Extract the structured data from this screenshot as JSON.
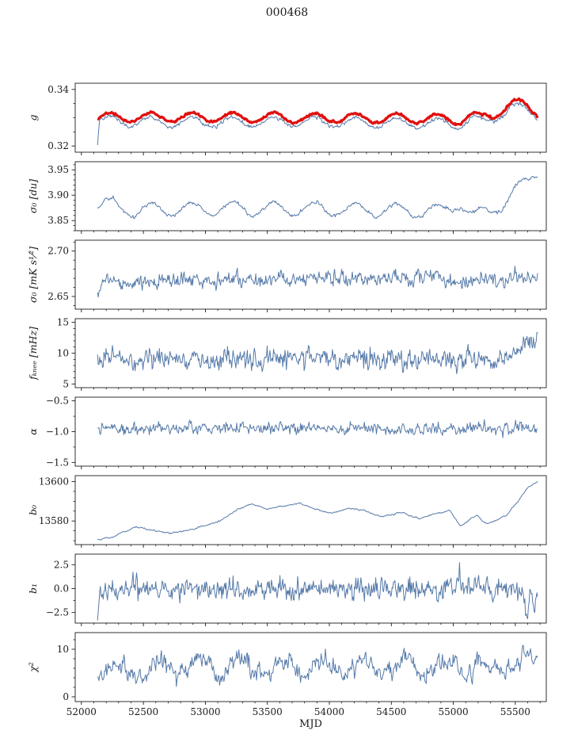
{
  "chart_data": {
    "type": "line",
    "title": "000468",
    "xlabel": "MJD",
    "x_domain": [
      51950,
      55750
    ],
    "x_ticks": [
      52000,
      52500,
      53000,
      53500,
      54000,
      54500,
      55000,
      55500
    ],
    "x_minor_step": 100,
    "x_data_range": [
      52130,
      55680
    ],
    "colors": {
      "line": "#567aa9",
      "highlight": "#e01010",
      "axis": "#000000"
    },
    "panels": [
      {
        "id": "g",
        "ylabel": "g",
        "ylim": [
          0.3178,
          0.3422
        ],
        "y_minor_step": 0.005,
        "yticks": [
          {
            "v": 0.32,
            "label": "0.32"
          },
          {
            "v": 0.34,
            "label": "0.34"
          }
        ],
        "series": [
          {
            "name": "g-raw",
            "color": "#567aa9",
            "width": 1,
            "seed": 11,
            "noise": 0.00035,
            "smooth": 0.45,
            "osc_amp": 0.0017,
            "osc_period": 330,
            "osc_peak": 52230,
            "anchors": [
              [
                52130,
                0.3215
              ],
              [
                52146,
                0.329
              ],
              [
                52300,
                0.3287
              ],
              [
                52700,
                0.3284
              ],
              [
                53200,
                0.3286
              ],
              [
                54000,
                0.3284
              ],
              [
                54600,
                0.3282
              ],
              [
                54900,
                0.328
              ],
              [
                55060,
                0.3279
              ],
              [
                55160,
                0.3293
              ],
              [
                55230,
                0.3282
              ],
              [
                55330,
                0.33
              ],
              [
                55470,
                0.3338
              ],
              [
                55560,
                0.333
              ],
              [
                55680,
                0.3308
              ]
            ]
          },
          {
            "name": "g-model",
            "color": "#e01010",
            "width": 3.2,
            "seed": 12,
            "noise": 0.00022,
            "smooth": 0.5,
            "osc_amp": 0.0017,
            "osc_period": 330,
            "osc_peak": 52230,
            "anchors": [
              [
                52130,
                0.33
              ],
              [
                52300,
                0.3302
              ],
              [
                53200,
                0.3301
              ],
              [
                54000,
                0.3299
              ],
              [
                54600,
                0.3297
              ],
              [
                54900,
                0.3295
              ],
              [
                55060,
                0.3294
              ],
              [
                55160,
                0.3307
              ],
              [
                55230,
                0.3297
              ],
              [
                55330,
                0.3313
              ],
              [
                55470,
                0.3352
              ],
              [
                55560,
                0.3344
              ],
              [
                55680,
                0.3322
              ]
            ]
          }
        ]
      },
      {
        "id": "sigma0-du",
        "ylabel": "σ₀ [du]",
        "ylim": [
          3.83,
          3.966
        ],
        "y_minor_step": 0.01,
        "yticks": [
          {
            "v": 3.85,
            "label": "3.85"
          },
          {
            "v": 3.9,
            "label": "3.90"
          },
          {
            "v": 3.95,
            "label": "3.95"
          }
        ],
        "series": [
          {
            "name": "sigma0-du",
            "color": "#567aa9",
            "width": 1,
            "seed": 21,
            "noise": 0.002,
            "smooth": 0.5,
            "osc_amp": 0.013,
            "osc_period": 330,
            "osc_peak": 52230,
            "anchors": [
              [
                52130,
                3.876
              ],
              [
                52250,
                3.882
              ],
              [
                52420,
                3.868
              ],
              [
                52600,
                3.872
              ],
              [
                53200,
                3.874
              ],
              [
                54000,
                3.872
              ],
              [
                54600,
                3.87
              ],
              [
                54900,
                3.868
              ],
              [
                55060,
                3.886
              ],
              [
                55110,
                3.867
              ],
              [
                55170,
                3.858
              ],
              [
                55260,
                3.868
              ],
              [
                55380,
                3.88
              ],
              [
                55500,
                3.905
              ],
              [
                55600,
                3.93
              ],
              [
                55680,
                3.95
              ]
            ]
          }
        ]
      },
      {
        "id": "sigma0-mK",
        "ylabel": "σ₀ [mK s¹⁄²]",
        "ylim": [
          2.636,
          2.712
        ],
        "y_minor_step": 0.01,
        "yticks": [
          {
            "v": 2.65,
            "label": "2.65"
          },
          {
            "v": 2.7,
            "label": "2.70"
          }
        ],
        "series": [
          {
            "name": "sigma0-mK",
            "color": "#567aa9",
            "width": 1,
            "seed": 31,
            "noise": 0.0042,
            "smooth": 0.35,
            "osc_amp": 0.0015,
            "osc_period": 330,
            "osc_peak": 52230,
            "anchors": [
              [
                52130,
                2.652
              ],
              [
                52170,
                2.666
              ],
              [
                52400,
                2.666
              ],
              [
                53000,
                2.668
              ],
              [
                53600,
                2.67
              ],
              [
                54300,
                2.671
              ],
              [
                54900,
                2.669
              ],
              [
                55200,
                2.668
              ],
              [
                55450,
                2.67
              ],
              [
                55680,
                2.672
              ]
            ]
          }
        ]
      },
      {
        "id": "fknee",
        "ylabel": "fₖₙₑₑ [mHz]",
        "ylim": [
          4.4,
          15.6
        ],
        "y_minor_step": 1,
        "yticks": [
          {
            "v": 5,
            "label": "5"
          },
          {
            "v": 10,
            "label": "10"
          },
          {
            "v": 15,
            "label": "15"
          }
        ],
        "series": [
          {
            "name": "fknee",
            "color": "#567aa9",
            "width": 1,
            "seed": 41,
            "noise": 0.75,
            "smooth": 0.3,
            "osc_amp": 0.25,
            "osc_period": 330,
            "osc_peak": 52230,
            "anchors": [
              [
                52130,
                9.3
              ],
              [
                52600,
                9.1
              ],
              [
                53400,
                9.2
              ],
              [
                54200,
                9
              ],
              [
                54900,
                8.8
              ],
              [
                55250,
                8.8
              ],
              [
                55430,
                9
              ],
              [
                55520,
                10.5
              ],
              [
                55600,
                12.2
              ],
              [
                55680,
                12.6
              ]
            ]
          }
        ]
      },
      {
        "id": "alpha",
        "ylabel": "α",
        "ylim": [
          -1.56,
          -0.44
        ],
        "y_minor_step": 0.25,
        "yticks": [
          {
            "v": -0.5,
            "label": "−0.5"
          },
          {
            "v": -1,
            "label": "−1.0"
          },
          {
            "v": -1.5,
            "label": "−1.5"
          }
        ],
        "series": [
          {
            "name": "alpha",
            "color": "#567aa9",
            "width": 1,
            "seed": 51,
            "noise": 0.045,
            "smooth": 0.3,
            "osc_amp": 0.012,
            "osc_period": 330,
            "osc_peak": 52230,
            "anchors": [
              [
                52130,
                -0.96
              ],
              [
                53000,
                -0.95
              ],
              [
                54000,
                -0.95
              ],
              [
                55000,
                -0.955
              ],
              [
                55680,
                -0.94
              ]
            ]
          }
        ]
      },
      {
        "id": "b0",
        "ylabel": "b₀",
        "ylim": [
          13568,
          13603
        ],
        "y_minor_step": 5,
        "yticks": [
          {
            "v": 13580,
            "label": "13580"
          },
          {
            "v": 13600,
            "label": "13600"
          }
        ],
        "series": [
          {
            "name": "b0",
            "color": "#567aa9",
            "width": 1,
            "seed": 61,
            "noise": 0.22,
            "smooth": 0.6,
            "osc_amp": 0,
            "osc_period": 330,
            "osc_peak": 52230,
            "anchors": [
              [
                52130,
                13570.5
              ],
              [
                52260,
                13572
              ],
              [
                52430,
                13577
              ],
              [
                52560,
                13575.5
              ],
              [
                52720,
                13573.5
              ],
              [
                52870,
                13575.5
              ],
              [
                53020,
                13578
              ],
              [
                53120,
                13580
              ],
              [
                53260,
                13586
              ],
              [
                53380,
                13588.5
              ],
              [
                53500,
                13586
              ],
              [
                53620,
                13587.5
              ],
              [
                53760,
                13589
              ],
              [
                53900,
                13585.5
              ],
              [
                54020,
                13584
              ],
              [
                54160,
                13586.5
              ],
              [
                54280,
                13585.5
              ],
              [
                54430,
                13582
              ],
              [
                54570,
                13584.5
              ],
              [
                54720,
                13581
              ],
              [
                54870,
                13584
              ],
              [
                54970,
                13585.5
              ],
              [
                55060,
                13577.5
              ],
              [
                55130,
                13580.5
              ],
              [
                55190,
                13583
              ],
              [
                55260,
                13578.5
              ],
              [
                55340,
                13580
              ],
              [
                55430,
                13583
              ],
              [
                55520,
                13590
              ],
              [
                55600,
                13597
              ],
              [
                55680,
                13600
              ]
            ]
          }
        ]
      },
      {
        "id": "b1",
        "ylabel": "b₁",
        "ylim": [
          -3.6,
          3.6
        ],
        "y_minor_step": 1.25,
        "yticks": [
          {
            "v": 2.5,
            "label": "2.5"
          },
          {
            "v": 0,
            "label": "0.0"
          },
          {
            "v": -2.5,
            "label": "−2.5"
          }
        ],
        "series": [
          {
            "name": "b1",
            "color": "#567aa9",
            "width": 1,
            "seed": 71,
            "noise": 0.55,
            "smooth": 0.3,
            "osc_amp": 0,
            "osc_period": 330,
            "osc_peak": 52230,
            "anchors": [
              [
                52130,
                -2.9
              ],
              [
                52150,
                0
              ],
              [
                53000,
                0.05
              ],
              [
                54000,
                0
              ],
              [
                54800,
                0.05
              ],
              [
                55020,
                0
              ],
              [
                55045,
                1.2
              ],
              [
                55052,
                3.1
              ],
              [
                55060,
                0.3
              ],
              [
                55300,
                0
              ],
              [
                55500,
                -0.2
              ],
              [
                55560,
                -1.2
              ],
              [
                55590,
                -3.2
              ],
              [
                55620,
                -0.5
              ],
              [
                55650,
                -2.6
              ],
              [
                55680,
                -0.8
              ]
            ]
          }
        ]
      },
      {
        "id": "chi2",
        "ylabel": "χ²",
        "ylim": [
          -1,
          13.5
        ],
        "y_minor_step": 2,
        "yticks": [
          {
            "v": 0,
            "label": "0"
          },
          {
            "v": 10,
            "label": "10"
          }
        ],
        "series": [
          {
            "name": "chi2",
            "color": "#567aa9",
            "width": 1,
            "seed": 81,
            "noise": 1.05,
            "smooth": 0.45,
            "osc_amp": 1.5,
            "osc_period": 330,
            "osc_peak": 52290,
            "anchors": [
              [
                52130,
                5.6
              ],
              [
                52600,
                6.1
              ],
              [
                53400,
                6.3
              ],
              [
                54200,
                6.2
              ],
              [
                54900,
                5.9
              ],
              [
                55400,
                6.2
              ],
              [
                55560,
                7.2
              ],
              [
                55680,
                7.6
              ]
            ]
          }
        ]
      }
    ]
  }
}
